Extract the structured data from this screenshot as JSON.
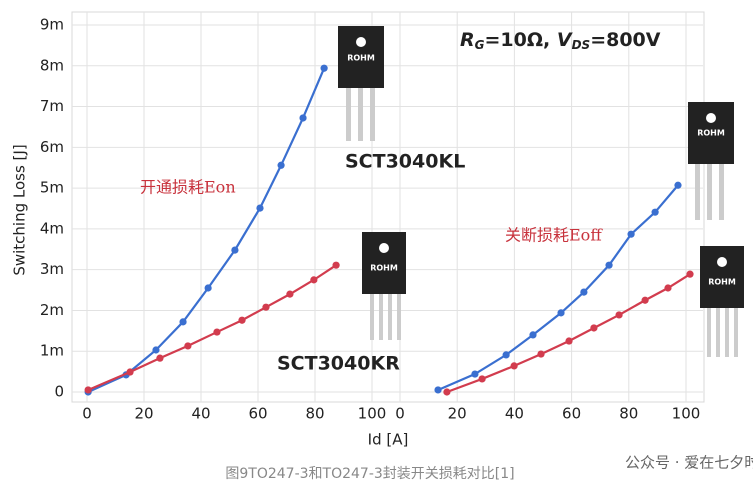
{
  "chart_data": [
    {
      "type": "line",
      "y_label": "Switching Loss [J]",
      "x_label": "Id [A]",
      "ylim": [
        0,
        9
      ],
      "yticks": [
        0,
        {
          "value": 1,
          "label": "1m"
        },
        {
          "value": 2,
          "label": "2m"
        },
        {
          "value": 3,
          "label": "3m"
        },
        {
          "value": 4,
          "label": "4m"
        },
        {
          "value": 5,
          "label": "5m"
        },
        {
          "value": 6,
          "label": "6m"
        },
        {
          "value": 7,
          "label": "7m"
        },
        {
          "value": 8,
          "label": "8m"
        },
        {
          "value": 9,
          "label": "9m"
        }
      ],
      "xlim": [
        0,
        100
      ],
      "xticks": [
        0,
        20,
        40,
        60,
        80,
        100
      ],
      "grid": true,
      "annotations": [
        "开通损耗Eon",
        "SCT3040KL",
        "SCT3040KR"
      ],
      "parameter_label": [
        "R",
        "G",
        "=10Ω, ",
        "V",
        "DS",
        "=800V"
      ],
      "series": [
        {
          "color": "#3a6fd0",
          "x": [
            0.4,
            13.7,
            24.2,
            33.7,
            42.5,
            51.9,
            60.7,
            68.1,
            75.8,
            83.2
          ],
          "values": [
            0,
            0.42,
            1.03,
            1.72,
            2.55,
            3.48,
            4.51,
            5.56,
            6.72,
            7.94
          ]
        },
        {
          "color": "#d23c4e",
          "x": [
            0.4,
            15.1,
            25.6,
            35.4,
            45.6,
            54.4,
            62.8,
            71.2,
            79.6,
            87.4
          ],
          "values": [
            0.05,
            0.49,
            0.83,
            1.13,
            1.47,
            1.76,
            2.08,
            2.4,
            2.75,
            3.11
          ]
        }
      ]
    },
    {
      "type": "line",
      "ylim": [
        0,
        9
      ],
      "xlim": [
        0,
        100
      ],
      "xticks": [
        0,
        20,
        40,
        60,
        80,
        100
      ],
      "grid": true,
      "annotations": [
        "关断损耗Eoff"
      ],
      "series": [
        {
          "color": "#3a6fd0",
          "x": [
            13.3,
            26.2,
            37.1,
            46.5,
            56.3,
            64.3,
            73.1,
            80.8,
            89.2,
            97.2
          ],
          "values": [
            0.05,
            0.44,
            0.91,
            1.4,
            1.94,
            2.45,
            3.11,
            3.87,
            4.41,
            5.07
          ]
        },
        {
          "color": "#d23c4e",
          "x": [
            16.4,
            28.7,
            39.9,
            49.3,
            59.1,
            67.8,
            76.6,
            85.7,
            93.7,
            101.4
          ],
          "values": [
            0,
            0.32,
            0.64,
            0.93,
            1.25,
            1.57,
            1.89,
            2.25,
            2.55,
            2.89
          ]
        }
      ]
    }
  ],
  "package_labels": [
    "ROHM",
    "ROHM",
    "ROHM",
    "ROHM"
  ],
  "caption": "图9TO247-3和TO247-3封装开关损耗对比[1]",
  "watermark": "公众号 · 爱在七夕时"
}
